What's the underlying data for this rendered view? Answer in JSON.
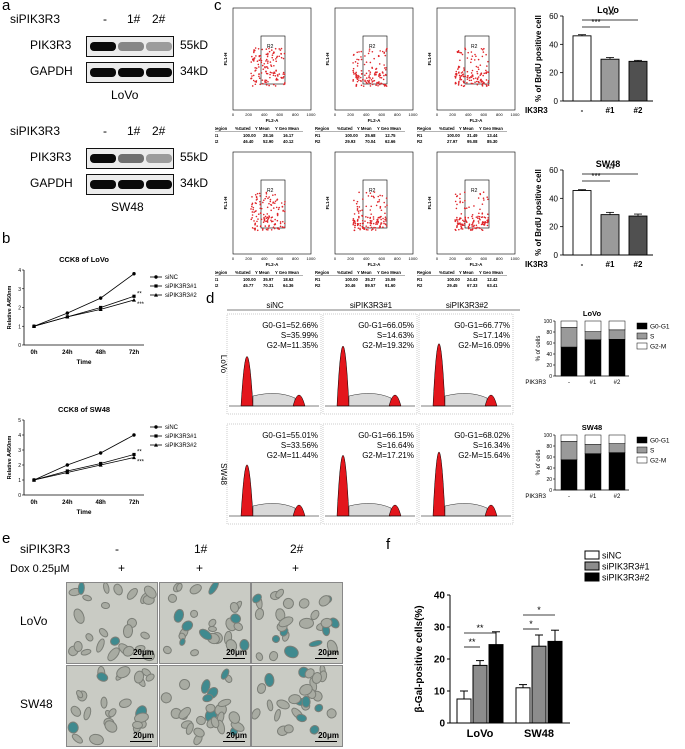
{
  "panel_a": {
    "letter": "a",
    "groups": [
      {
        "sirna": "siPIK3R3",
        "lanes": [
          "-",
          "1#",
          "2#"
        ],
        "rows": [
          {
            "name": "PIK3R3",
            "kd": "55kD"
          },
          {
            "name": "GAPDH",
            "kd": "34kD"
          }
        ],
        "cell": "LoVo"
      },
      {
        "sirna": "siPIK3R3",
        "lanes": [
          "-",
          "1#",
          "2#"
        ],
        "rows": [
          {
            "name": "PIK3R3",
            "kd": "55kD"
          },
          {
            "name": "GAPDH",
            "kd": "34kD"
          }
        ],
        "cell": "SW48"
      }
    ]
  },
  "panel_b": {
    "letter": "b",
    "charts": [
      {
        "title": "CCK8 of LoVo",
        "ylabel": "Relative A450nm",
        "xlabel": "Time",
        "categories": [
          "0h",
          "24h",
          "48h",
          "72h"
        ],
        "legend": [
          "siNC",
          "siPIK3R3#1",
          "siPIK3R3#2"
        ],
        "stars": [
          "**",
          "***"
        ]
      },
      {
        "title": "CCK8 of SW48",
        "ylabel": "Relative A450nm",
        "xlabel": "Time",
        "categories": [
          "0h",
          "24h",
          "48h",
          "72h"
        ],
        "legend": [
          "siNC",
          "siPIK3R3#1",
          "siPIK3R3#2"
        ],
        "stars": [
          "**",
          "***"
        ]
      }
    ]
  },
  "panel_c": {
    "letter": "c",
    "axis_y": "FL1-H",
    "axis_x": "FL2-A",
    "gate": "R2",
    "ticks": [
      "0",
      "200",
      "400",
      "600",
      "800",
      "1000"
    ],
    "stats_header": [
      "Region",
      "%Gated",
      "Y Mean",
      "Y Geo Mean"
    ],
    "stats": [
      [
        [
          "R1",
          "100.00",
          "28.16",
          "16.17"
        ],
        [
          "R2",
          "46.40",
          "52.90",
          "40.12"
        ]
      ],
      [
        [
          "R1",
          "100.00",
          "25.68",
          "12.75"
        ],
        [
          "R2",
          "29.93",
          "70.04",
          "62.66"
        ]
      ],
      [
        [
          "R1",
          "100.00",
          "31.49",
          "13.44"
        ],
        [
          "R2",
          "27.97",
          "95.08",
          "85.30"
        ]
      ],
      [
        [
          "R1",
          "100.00",
          "35.97",
          "18.62"
        ],
        [
          "R2",
          "45.77",
          "70.31",
          "64.36"
        ]
      ],
      [
        [
          "R1",
          "100.00",
          "35.27",
          "15.09"
        ],
        [
          "R2",
          "30.46",
          "89.57",
          "91.60"
        ]
      ],
      [
        [
          "R1",
          "100.00",
          "24.43",
          "12.42"
        ],
        [
          "R2",
          "29.45",
          "67.33",
          "63.41"
        ]
      ]
    ],
    "bar_ylabel": "% of BrdU positive cell",
    "bar_x_title": "siPIK3R3",
    "bar_cats": [
      "-",
      "#1",
      "#2"
    ],
    "sig": "***"
  },
  "panel_d": {
    "letter": "d",
    "cols": [
      "siNC",
      "siPIK3R3#1",
      "siPIK3R3#2"
    ],
    "rows": [
      "LoVo",
      "SW48"
    ],
    "texts": [
      [
        [
          "G0-G1=52.66%",
          "S=35.99%",
          "G2-M=11.35%"
        ],
        [
          "G0-G1=66.05%",
          "S=14.63%",
          "G2-M=19.32%"
        ],
        [
          "G0-G1=66.77%",
          "S=17.14%",
          "G2-M=16.09%"
        ]
      ],
      [
        [
          "G0-G1=55.01%",
          "S=33.56%",
          "G2-M=11.44%"
        ],
        [
          "G0-G1=66.15%",
          "S=16.64%",
          "G2-M=17.21%"
        ],
        [
          "G0-G1=68.02%",
          "S=16.34%",
          "G2-M=15.64%"
        ]
      ]
    ],
    "stack_ylabel": "% of cells",
    "stack_legend": [
      "G0-G1",
      "S",
      "G2-M"
    ],
    "stack_x_title": "siPIK3R3",
    "stack_cats": [
      "-",
      "#1",
      "#2"
    ]
  },
  "panel_e": {
    "letter": "e",
    "sirna_label": "siPIK3R3",
    "dox_label": "Dox 0.25μM",
    "cols": [
      "-",
      "1#",
      "2#"
    ],
    "plus": [
      "+",
      "+",
      "+"
    ],
    "rows": [
      "LoVo",
      "SW48"
    ],
    "scale": "20μm"
  },
  "panel_f": {
    "letter": "f",
    "stars": [
      "**",
      "**",
      "*",
      "*"
    ]
  },
  "chart_data": [
    {
      "type": "line",
      "title": "CCK8 of LoVo",
      "xlabel": "Time",
      "ylabel": "Relative A450nm",
      "categories": [
        "0h",
        "24h",
        "48h",
        "72h"
      ],
      "ylim": [
        0,
        4
      ],
      "series": [
        {
          "name": "siNC",
          "values": [
            1.0,
            1.7,
            2.5,
            3.8
          ]
        },
        {
          "name": "siPIK3R3#1",
          "values": [
            1.0,
            1.5,
            2.0,
            2.6
          ]
        },
        {
          "name": "siPIK3R3#2",
          "values": [
            1.0,
            1.5,
            1.9,
            2.4
          ]
        }
      ]
    },
    {
      "type": "line",
      "title": "CCK8 of SW48",
      "xlabel": "Time",
      "ylabel": "Relative A450nm",
      "categories": [
        "0h",
        "24h",
        "48h",
        "72h"
      ],
      "ylim": [
        0,
        5
      ],
      "series": [
        {
          "name": "siNC",
          "values": [
            1.0,
            2.0,
            2.8,
            4.0
          ]
        },
        {
          "name": "siPIK3R3#1",
          "values": [
            1.0,
            1.6,
            2.1,
            2.7
          ]
        },
        {
          "name": "siPIK3R3#2",
          "values": [
            1.0,
            1.5,
            2.0,
            2.5
          ]
        }
      ]
    },
    {
      "type": "bar",
      "title": "LoVo",
      "xlabel": "siPIK3R3",
      "ylabel": "% of BrdU positive cell",
      "categories": [
        "-",
        "#1",
        "#2"
      ],
      "values": [
        46,
        29.5,
        28
      ],
      "errors": [
        0.8,
        1.2,
        0.7
      ],
      "ylim": [
        0,
        60
      ],
      "yticks": [
        0,
        20,
        40,
        60
      ]
    },
    {
      "type": "bar",
      "title": "SW48",
      "xlabel": "siPIK3R3",
      "ylabel": "% of BrdU positive cell",
      "categories": [
        "-",
        "#1",
        "#2"
      ],
      "values": [
        45.5,
        28.5,
        27.5
      ],
      "errors": [
        0.6,
        1.6,
        1.4
      ],
      "ylim": [
        0,
        60
      ],
      "yticks": [
        0,
        20,
        40,
        60
      ]
    },
    {
      "type": "bar",
      "title": "LoVo",
      "xlabel": "siPIK3R3",
      "ylabel": "% of cells",
      "categories": [
        "-",
        "#1",
        "#2"
      ],
      "series": [
        {
          "name": "G0-G1",
          "values": [
            52.66,
            66.05,
            66.77
          ]
        },
        {
          "name": "S",
          "values": [
            35.99,
            14.63,
            17.14
          ]
        },
        {
          "name": "G2-M",
          "values": [
            11.35,
            19.32,
            16.09
          ]
        }
      ],
      "ylim": [
        0,
        100
      ],
      "yticks": [
        0,
        20,
        40,
        60,
        80,
        100
      ]
    },
    {
      "type": "bar",
      "title": "SW48",
      "xlabel": "siPIK3R3",
      "ylabel": "% of cells",
      "categories": [
        "-",
        "#1",
        "#2"
      ],
      "series": [
        {
          "name": "G0-G1",
          "values": [
            55.01,
            66.15,
            68.02
          ]
        },
        {
          "name": "S",
          "values": [
            33.56,
            16.64,
            16.34
          ]
        },
        {
          "name": "G2-M",
          "values": [
            11.44,
            17.21,
            15.64
          ]
        }
      ],
      "ylim": [
        0,
        100
      ],
      "yticks": [
        0,
        20,
        40,
        60,
        80,
        100
      ]
    },
    {
      "type": "bar",
      "xlabel": "",
      "ylabel": "β-Gal-positive cells(%)",
      "categories": [
        "LoVo",
        "SW48"
      ],
      "ylim": [
        0,
        40
      ],
      "yticks": [
        0,
        10,
        20,
        30,
        40
      ],
      "series": [
        {
          "name": "siNC",
          "values": [
            7.5,
            11
          ],
          "errors": [
            2.5,
            1
          ]
        },
        {
          "name": "siPIK3R3#1",
          "values": [
            18,
            24
          ],
          "errors": [
            1.5,
            3.5
          ]
        },
        {
          "name": "siPIK3R3#2",
          "values": [
            24.5,
            25.5
          ],
          "errors": [
            4,
            3.5
          ]
        }
      ]
    }
  ]
}
